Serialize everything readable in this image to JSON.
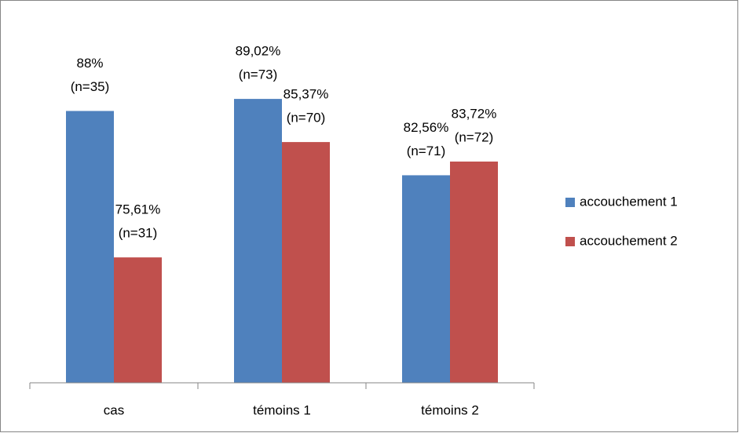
{
  "chart_data": {
    "type": "bar",
    "categories": [
      "cas",
      "témoins 1",
      "témoins 2"
    ],
    "series": [
      {
        "name": "accouchement 1",
        "color": "#4f81bd",
        "values": [
          88,
          89.02,
          82.56
        ],
        "value_labels": [
          "88%",
          "89,02%",
          "82,56%"
        ],
        "n_labels": [
          "(n=35)",
          "(n=73)",
          "(n=71)"
        ]
      },
      {
        "name": "accouchement 2",
        "color": "#c0504d",
        "values": [
          75.61,
          85.37,
          83.72
        ],
        "value_labels": [
          "75,61%",
          "85,37%",
          "83,72%"
        ],
        "n_labels": [
          "(n=31)",
          "(n=70)",
          "(n=72)"
        ]
      }
    ],
    "ylim": [
      65,
      95
    ],
    "legend": "right"
  }
}
